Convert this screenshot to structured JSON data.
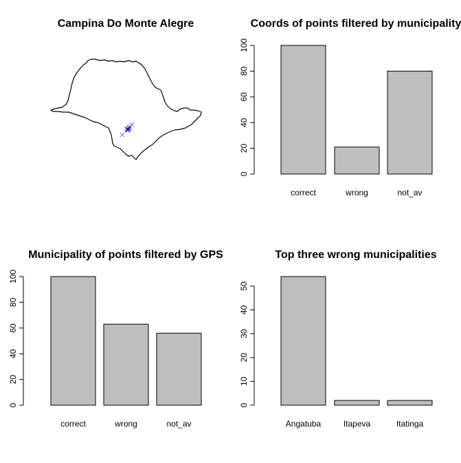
{
  "map_panel": {
    "title": "Campina Do Monte Alegre",
    "point_color_light": "#6f6ff5",
    "point_color_dark": "#0000cc"
  },
  "chart_data": [
    {
      "type": "bar",
      "title": "Coords of points filtered by municipality",
      "categories": [
        "correct",
        "wrong",
        "not_av"
      ],
      "values": [
        100,
        21,
        80
      ],
      "ylim": [
        0,
        100
      ],
      "yticks": [
        0,
        20,
        40,
        60,
        80,
        100
      ],
      "bar_color": "#bebebe"
    },
    {
      "type": "bar",
      "title": "Municipality of points filtered by GPS",
      "categories": [
        "correct",
        "wrong",
        "not_av"
      ],
      "values": [
        100,
        63,
        56
      ],
      "ylim": [
        0,
        100
      ],
      "yticks": [
        0,
        20,
        40,
        60,
        80,
        100
      ],
      "bar_color": "#bebebe"
    },
    {
      "type": "bar",
      "title": "Top three wrong municipalities",
      "categories": [
        "Angatuba",
        "Itapeva",
        "Itatinga"
      ],
      "values": [
        54,
        2,
        2
      ],
      "ylim": [
        0,
        54
      ],
      "yticks": [
        0,
        10,
        20,
        30,
        40,
        50
      ],
      "bar_color": "#bebebe"
    }
  ]
}
